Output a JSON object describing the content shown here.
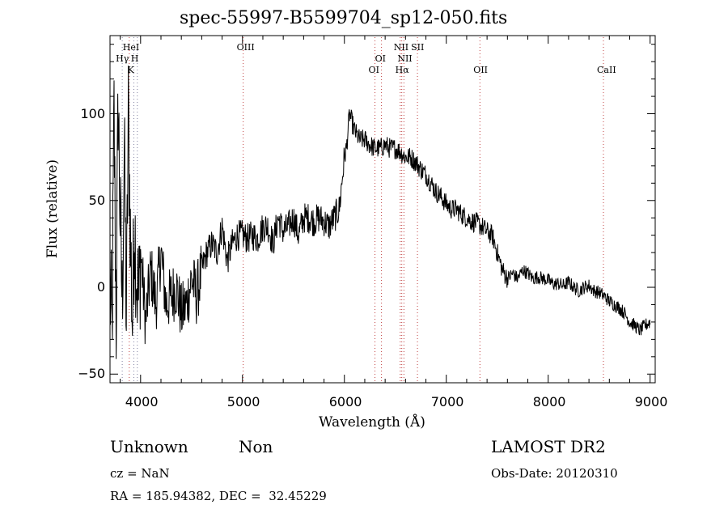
{
  "chart_data": {
    "type": "line",
    "title": "spec-55997-B5599704_sp12-050.fits",
    "xlabel": "Wavelength (Å)",
    "ylabel": "Flux (relative)",
    "xlim": [
      3700,
      9050
    ],
    "ylim": [
      -55,
      145
    ],
    "xticks": [
      4000,
      5000,
      6000,
      7000,
      8000,
      9000
    ],
    "yticks": [
      -50,
      0,
      50,
      100
    ],
    "series": [
      {
        "color": "#000000",
        "x": [
          3700,
          3720,
          3740,
          3760,
          3780,
          3800,
          3820,
          3840,
          3860,
          3880,
          3900,
          3920,
          3940,
          3960,
          3980,
          4000,
          4050,
          4100,
          4150,
          4200,
          4250,
          4300,
          4350,
          4400,
          4450,
          4500,
          4550,
          4600,
          4650,
          4700,
          4750,
          4800,
          4850,
          4900,
          4950,
          5000,
          5050,
          5100,
          5150,
          5200,
          5250,
          5300,
          5350,
          5400,
          5450,
          5500,
          5550,
          5600,
          5650,
          5700,
          5750,
          5800,
          5850,
          5900,
          5950,
          6000,
          6020,
          6050,
          6100,
          6150,
          6200,
          6250,
          6300,
          6350,
          6400,
          6450,
          6500,
          6550,
          6600,
          6650,
          6700,
          6750,
          6800,
          6850,
          6900,
          6950,
          7000,
          7050,
          7100,
          7150,
          7200,
          7250,
          7300,
          7350,
          7400,
          7450,
          7500,
          7550,
          7600,
          7650,
          7700,
          7750,
          7800,
          7850,
          7900,
          7950,
          8000,
          8050,
          8100,
          8150,
          8200,
          8250,
          8300,
          8350,
          8400,
          8450,
          8500,
          8550,
          8600,
          8650,
          8700,
          8750,
          8800,
          8850,
          8900,
          8950,
          9000
        ],
        "values": [
          0,
          -30,
          100,
          -20,
          110,
          40,
          -10,
          80,
          -20,
          100,
          30,
          -20,
          40,
          10,
          -10,
          20,
          -20,
          10,
          -10,
          20,
          -10,
          -5,
          0,
          -15,
          -10,
          5,
          -5,
          10,
          20,
          25,
          20,
          35,
          15,
          25,
          30,
          30,
          28,
          30,
          28,
          35,
          35,
          25,
          40,
          32,
          35,
          40,
          30,
          40,
          40,
          38,
          40,
          38,
          35,
          40,
          45,
          75,
          80,
          100,
          90,
          85,
          85,
          82,
          80,
          80,
          82,
          80,
          80,
          78,
          75,
          75,
          72,
          68,
          65,
          60,
          55,
          52,
          48,
          45,
          45,
          42,
          40,
          38,
          37,
          35,
          32,
          30,
          20,
          10,
          5,
          8,
          5,
          10,
          8,
          5,
          6,
          5,
          4,
          2,
          2,
          1,
          3,
          0,
          -2,
          0,
          1,
          -2,
          -3,
          -5,
          -8,
          -10,
          -12,
          -15,
          -20,
          -22,
          -25,
          -22,
          -20
        ]
      }
    ],
    "lines": [
      {
        "label": "HeI",
        "x": 3889,
        "color": "#c04040"
      },
      {
        "label": "Hγ",
        "x": 3820,
        "color": "#8080a0"
      },
      {
        "label": "H",
        "x": 3968,
        "color": "#8080a0"
      },
      {
        "label": "K",
        "x": 3934,
        "color": "#8080a0"
      },
      {
        "label": "OIII",
        "x": 5007,
        "color": "#c04040"
      },
      {
        "label": "OI",
        "x": 6364,
        "color": "#c04040"
      },
      {
        "label": "OI",
        "x": 6300,
        "color": "#c04040"
      },
      {
        "label": "NII",
        "x": 6548,
        "color": "#c04040"
      },
      {
        "label": "NII",
        "x": 6584,
        "color": "#c04040"
      },
      {
        "label": "SII",
        "x": 6717,
        "color": "#c04040"
      },
      {
        "label": "Hα",
        "x": 6563,
        "color": "#c04040"
      },
      {
        "label": "OII",
        "x": 7330,
        "color": "#c04040"
      },
      {
        "label": "CaII",
        "x": 8542,
        "color": "#c04040"
      }
    ]
  },
  "info": {
    "class": "Unknown",
    "subclass": "Non",
    "survey": "LAMOST DR2",
    "cz": "cz = NaN",
    "obsdate": "Obs-Date: 20120310",
    "coords": "RA = 185.94382, DEC =  32.45229"
  }
}
